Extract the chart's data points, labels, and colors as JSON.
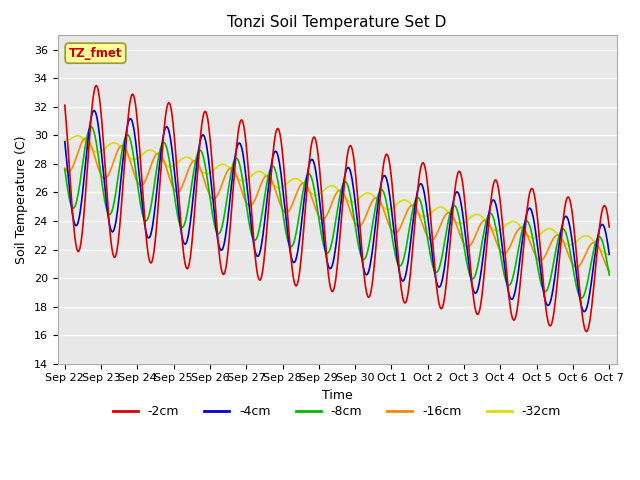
{
  "title": "Tonzi Soil Temperature Set D",
  "xlabel": "Time",
  "ylabel": "Soil Temperature (C)",
  "ylim": [
    14,
    37
  ],
  "yticks": [
    14,
    16,
    18,
    20,
    22,
    24,
    26,
    28,
    30,
    32,
    34,
    36
  ],
  "label_box_text": "TZ_fmet",
  "label_box_color": "#ffff99",
  "label_box_text_color": "#cc0000",
  "colors": {
    "-2cm": "#dd0000",
    "-4cm": "#0000cc",
    "-8cm": "#00bb00",
    "-16cm": "#ff8800",
    "-32cm": "#dddd00"
  },
  "plot_bg": "#e8e8e8",
  "x_tick_labels": [
    "Sep 22",
    "Sep 23",
    "Sep 24",
    "Sep 25",
    "Sep 26",
    "Sep 27",
    "Sep 28",
    "Sep 29",
    "Sep 30",
    "Oct 1",
    "Oct 2",
    "Oct 3",
    "Oct 4",
    "Oct 5",
    "Oct 6",
    "Oct 7"
  ]
}
